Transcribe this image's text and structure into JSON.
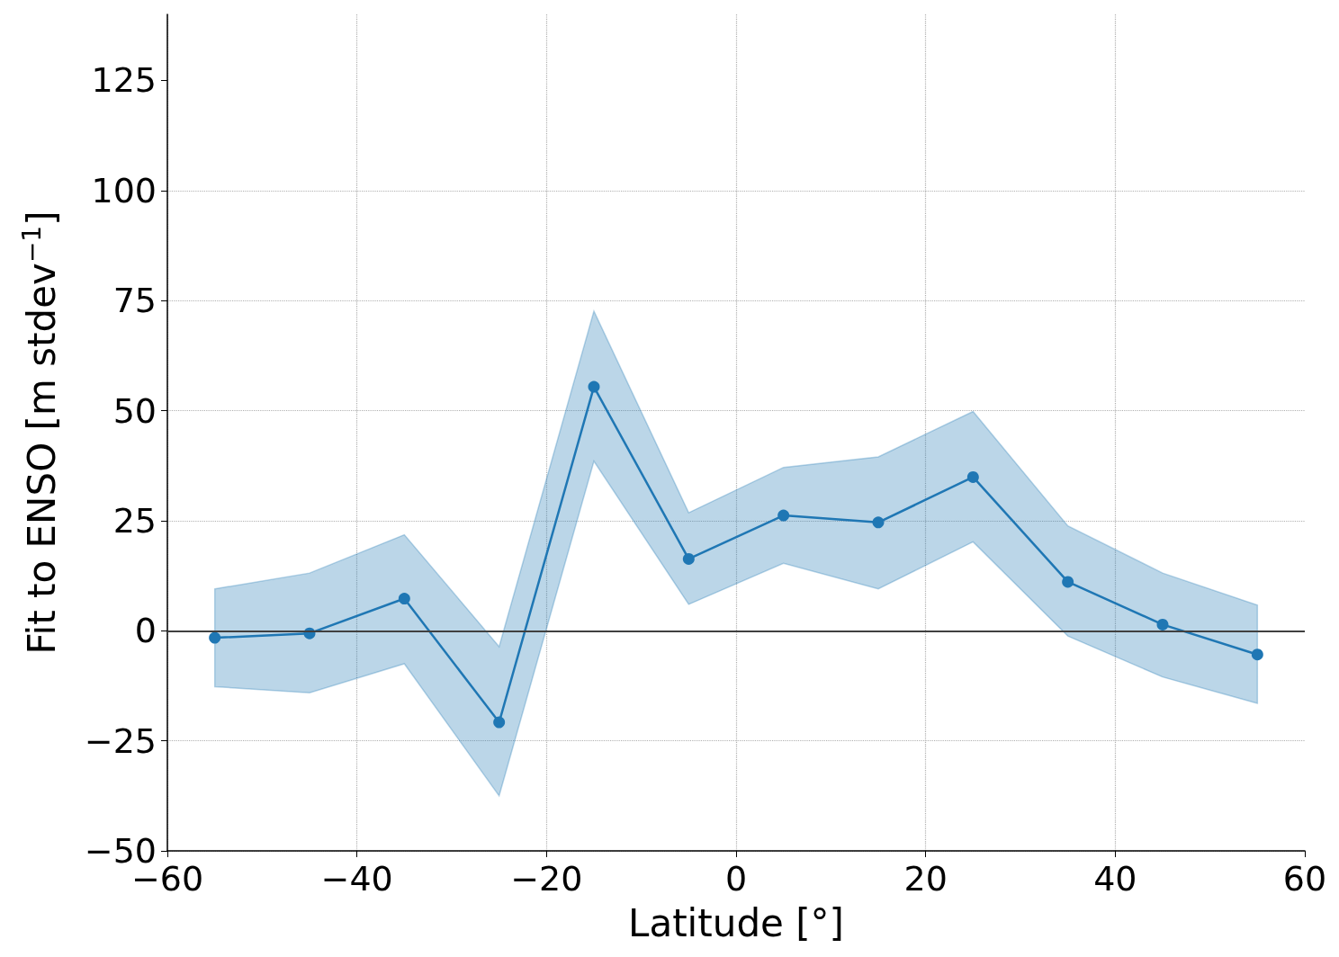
{
  "chart_data": {
    "type": "line",
    "xlabel": "Latitude [°]",
    "ylabel": "Fit to ENSO [m stdev$^{−1}$]",
    "x": [
      -55,
      -45,
      -35,
      -25,
      -15,
      -5,
      5,
      15,
      25,
      35,
      45,
      55
    ],
    "series": [
      {
        "color": "#1f77b4",
        "values": [
          -1.6,
          -0.6,
          7.3,
          -20.8,
          55.4,
          16.3,
          26.2,
          24.6,
          34.9,
          11.1,
          1.4,
          -5.4
        ],
        "lower": [
          -12.7,
          -14.1,
          -7.5,
          -37.5,
          38.5,
          6.0,
          15.3,
          9.5,
          20.2,
          -1.2,
          -10.5,
          -16.5
        ],
        "upper": [
          9.5,
          13.1,
          21.8,
          -3.6,
          72.6,
          26.8,
          37.1,
          39.5,
          49.8,
          23.8,
          13.1,
          5.8
        ]
      }
    ],
    "xlim": [
      -60,
      60
    ],
    "ylim": [
      -50,
      140
    ],
    "xticks": [
      -60,
      -40,
      -20,
      0,
      20,
      40,
      60
    ],
    "yticks": [
      -50,
      -25,
      0,
      25,
      50,
      75,
      100,
      125
    ],
    "grid": true,
    "marker": "circle",
    "line_style": "solid",
    "ref_lines": [
      {
        "axis": "y",
        "value": 0,
        "color": "#404040"
      }
    ]
  }
}
